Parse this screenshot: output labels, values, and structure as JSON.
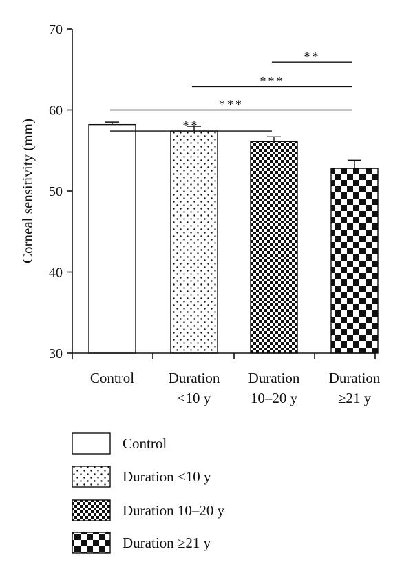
{
  "chart_data": {
    "type": "bar",
    "categories": [
      [
        "Control"
      ],
      [
        "Duration",
        "<10 y"
      ],
      [
        "Duration",
        "10–20 y"
      ],
      [
        "Duration",
        "≥21 y"
      ]
    ],
    "values": [
      58.2,
      57.4,
      56.1,
      52.8
    ],
    "errors": [
      0.3,
      0.6,
      0.6,
      1.0
    ],
    "patterns": [
      "none",
      "dots",
      "fine-checker",
      "coarse-checker"
    ],
    "ylabel": "Corneal sensitivity (mm)",
    "xlabel": "",
    "ylim": [
      30,
      70
    ],
    "yticks": [
      30,
      40,
      50,
      60,
      70
    ],
    "grid": false,
    "legend": {
      "placement": "bottom",
      "entries": [
        "Control",
        "Duration <10 y",
        "Duration 10–20 y",
        "Duration ≥21 y"
      ]
    },
    "significance": [
      {
        "from": 2,
        "to": 3,
        "label": "**",
        "y": 65.9
      },
      {
        "from": 1,
        "to": 3,
        "label": "***",
        "y": 62.9
      },
      {
        "from": 0,
        "to": 3,
        "label": "***",
        "y": 60.0
      },
      {
        "from": 0,
        "to": 2,
        "label": "**",
        "y": 57.4
      }
    ]
  }
}
